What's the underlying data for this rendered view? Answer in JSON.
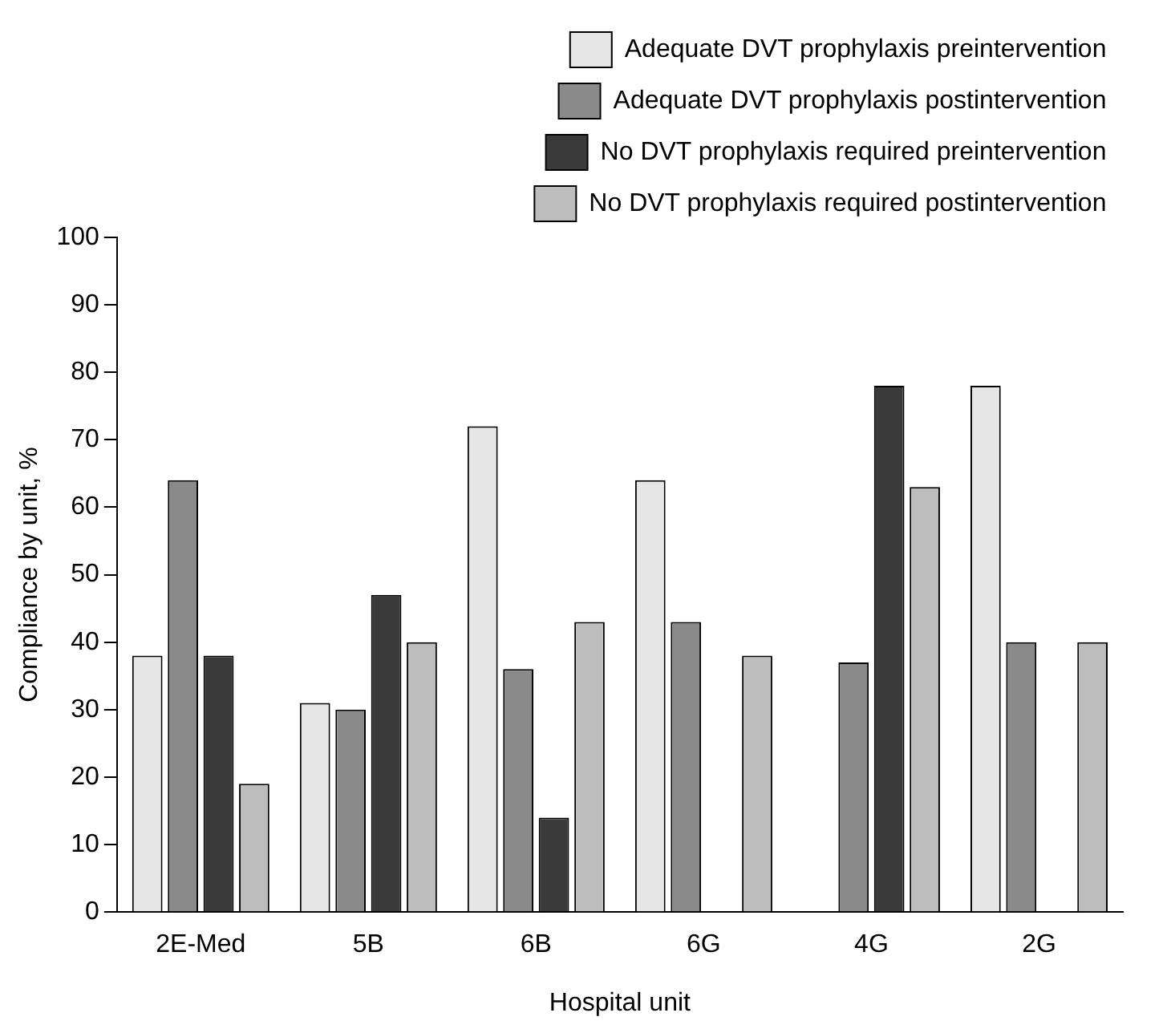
{
  "chart_data": {
    "type": "bar",
    "xlabel": "Hospital unit",
    "ylabel": "Compliance by unit, %",
    "categories": [
      "2E-Med",
      "5B",
      "6B",
      "6G",
      "4G",
      "2G"
    ],
    "series": [
      {
        "name": "Adequate DVT prophylaxis preintervention",
        "color": "#e6e6e6",
        "values": [
          38,
          31,
          72,
          64,
          0,
          78
        ]
      },
      {
        "name": "Adequate DVT prophylaxis postintervention",
        "color": "#8a8a8a",
        "values": [
          64,
          30,
          36,
          43,
          37,
          40
        ]
      },
      {
        "name": "No DVT prophylaxis required preintervention",
        "color": "#3a3a3a",
        "values": [
          38,
          47,
          14,
          0,
          78,
          0
        ]
      },
      {
        "name": "No DVT prophylaxis required postintervention",
        "color": "#bdbdbd",
        "values": [
          19,
          40,
          43,
          38,
          63,
          40
        ]
      }
    ],
    "ylim": [
      0,
      100
    ],
    "yticks": [
      0,
      10,
      20,
      30,
      40,
      50,
      60,
      70,
      80,
      90,
      100
    ],
    "grid": false,
    "legend": "top right"
  }
}
